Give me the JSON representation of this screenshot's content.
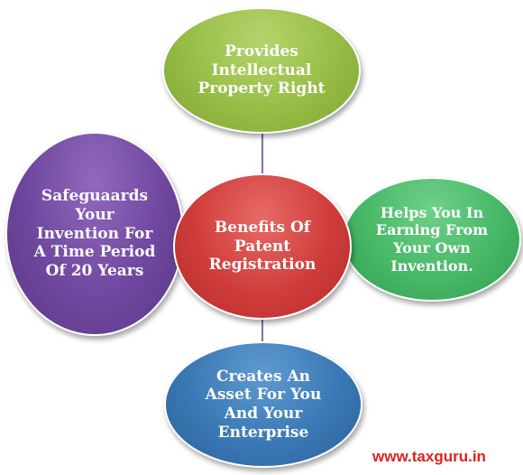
{
  "diagram": {
    "center": "Benefits Of\nPatent\nRegistration",
    "top": "Provides\nIntellectual\nProperty Right",
    "right": "Helps You In\nEarning From\nYour Own\nInvention.",
    "left": "Safeguaards\nYour\nInvention For\nA Time Period\nOf 20 Years",
    "bottom": "Creates An\nAsset For You\nAnd Your\nEnterprise"
  },
  "colors": {
    "center": "#cf3d3b",
    "top": "#97bd46",
    "right": "#46b866",
    "left": "#6f479e",
    "bottom": "#3a78b5",
    "connector": "#8a6aa8",
    "watermark": "#e0211d"
  },
  "watermark": "www.taxguru.in"
}
